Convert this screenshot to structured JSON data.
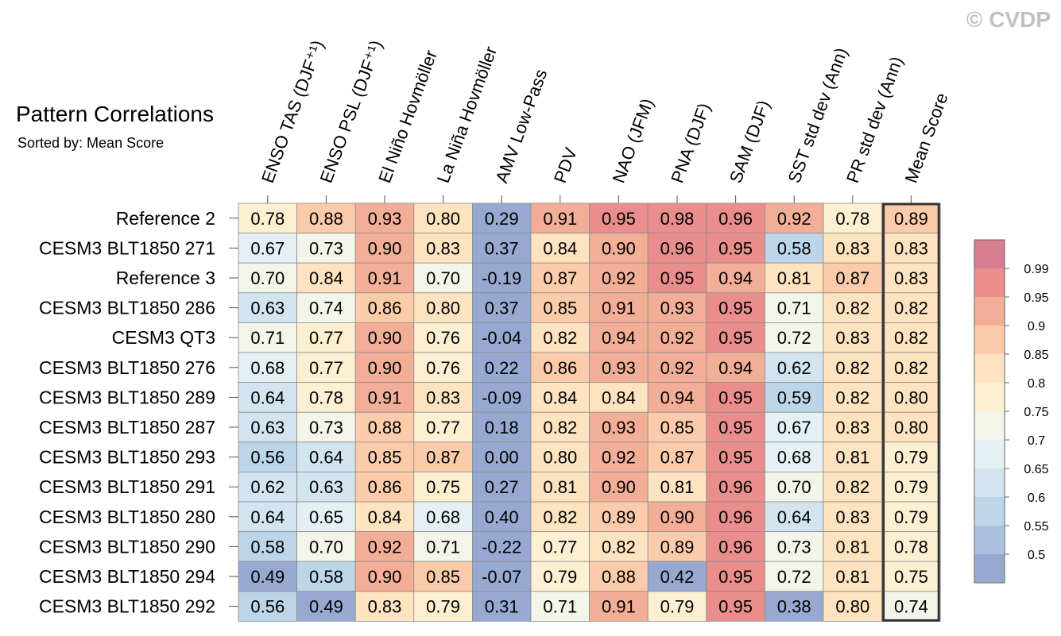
{
  "watermark": "© CVDP",
  "chart_data": {
    "type": "heatmap",
    "title": "Pattern Correlations",
    "subtitle": "Sorted by: Mean Score",
    "columns": [
      "ENSO TAS (DJF⁺¹)",
      "ENSO PSL (DJF⁺¹)",
      "El Niño Hovmöller",
      "La Niña Hovmöller",
      "AMV Low-Pass",
      "PDV",
      "NAO (JFM)",
      "PNA (DJF)",
      "SAM (DJF)",
      "SST std dev (Ann)",
      "PR std dev (Ann)",
      "Mean Score"
    ],
    "highlighted_column": "Mean Score",
    "rows": [
      {
        "name": "Reference 2",
        "values": [
          0.78,
          0.88,
          0.93,
          0.8,
          0.29,
          0.91,
          0.95,
          0.98,
          0.96,
          0.92,
          0.78,
          0.89
        ]
      },
      {
        "name": "CESM3 BLT1850 271",
        "values": [
          0.67,
          0.73,
          0.9,
          0.83,
          0.37,
          0.84,
          0.9,
          0.96,
          0.95,
          0.58,
          0.83,
          0.83
        ]
      },
      {
        "name": "Reference 3",
        "values": [
          0.7,
          0.84,
          0.91,
          0.7,
          -0.19,
          0.87,
          0.92,
          0.95,
          0.94,
          0.81,
          0.87,
          0.83
        ]
      },
      {
        "name": "CESM3 BLT1850 286",
        "values": [
          0.63,
          0.74,
          0.86,
          0.8,
          0.37,
          0.85,
          0.91,
          0.93,
          0.95,
          0.71,
          0.82,
          0.82
        ]
      },
      {
        "name": "CESM3 QT3",
        "values": [
          0.71,
          0.77,
          0.9,
          0.76,
          -0.04,
          0.82,
          0.94,
          0.92,
          0.95,
          0.72,
          0.83,
          0.82
        ]
      },
      {
        "name": "CESM3 BLT1850 276",
        "values": [
          0.68,
          0.77,
          0.9,
          0.76,
          0.22,
          0.86,
          0.93,
          0.92,
          0.94,
          0.62,
          0.82,
          0.82
        ]
      },
      {
        "name": "CESM3 BLT1850 289",
        "values": [
          0.64,
          0.78,
          0.91,
          0.83,
          -0.09,
          0.84,
          0.84,
          0.94,
          0.95,
          0.59,
          0.82,
          0.8
        ]
      },
      {
        "name": "CESM3 BLT1850 287",
        "values": [
          0.63,
          0.73,
          0.88,
          0.77,
          0.18,
          0.82,
          0.93,
          0.85,
          0.95,
          0.67,
          0.83,
          0.8
        ]
      },
      {
        "name": "CESM3 BLT1850 293",
        "values": [
          0.56,
          0.64,
          0.85,
          0.87,
          -0.0,
          0.8,
          0.92,
          0.87,
          0.95,
          0.68,
          0.81,
          0.79
        ]
      },
      {
        "name": "CESM3 BLT1850 291",
        "values": [
          0.62,
          0.63,
          0.86,
          0.75,
          0.27,
          0.81,
          0.9,
          0.81,
          0.96,
          0.7,
          0.82,
          0.79
        ]
      },
      {
        "name": "CESM3 BLT1850 280",
        "values": [
          0.64,
          0.65,
          0.84,
          0.68,
          0.4,
          0.82,
          0.89,
          0.9,
          0.96,
          0.64,
          0.83,
          0.79
        ]
      },
      {
        "name": "CESM3 BLT1850 290",
        "values": [
          0.58,
          0.7,
          0.92,
          0.71,
          -0.22,
          0.77,
          0.82,
          0.89,
          0.96,
          0.73,
          0.81,
          0.78
        ]
      },
      {
        "name": "CESM3 BLT1850 294",
        "values": [
          0.49,
          0.58,
          0.9,
          0.85,
          -0.07,
          0.79,
          0.88,
          0.42,
          0.95,
          0.72,
          0.81,
          0.75
        ]
      },
      {
        "name": "CESM3 BLT1850 292",
        "values": [
          0.56,
          0.49,
          0.83,
          0.79,
          0.31,
          0.71,
          0.91,
          0.79,
          0.95,
          0.38,
          0.8,
          0.74
        ]
      }
    ],
    "colorbar": {
      "labels": [
        "0.99",
        "0.95",
        "0.9",
        "0.85",
        "0.8",
        "0.75",
        "0.7",
        "0.65",
        "0.6",
        "0.55",
        "0.5"
      ],
      "thresholds": [
        0.5,
        0.55,
        0.6,
        0.65,
        0.7,
        0.75,
        0.8,
        0.85,
        0.9,
        0.95,
        0.99
      ],
      "colors": [
        "#98a9d1",
        "#aac1de",
        "#bdd5e8",
        "#d1e4ef",
        "#e4f0f3",
        "#f3f4ea",
        "#fdf0d2",
        "#fde3bf",
        "#fcccaa",
        "#f3ae97",
        "#e98e8c",
        "#d67d92"
      ]
    }
  }
}
